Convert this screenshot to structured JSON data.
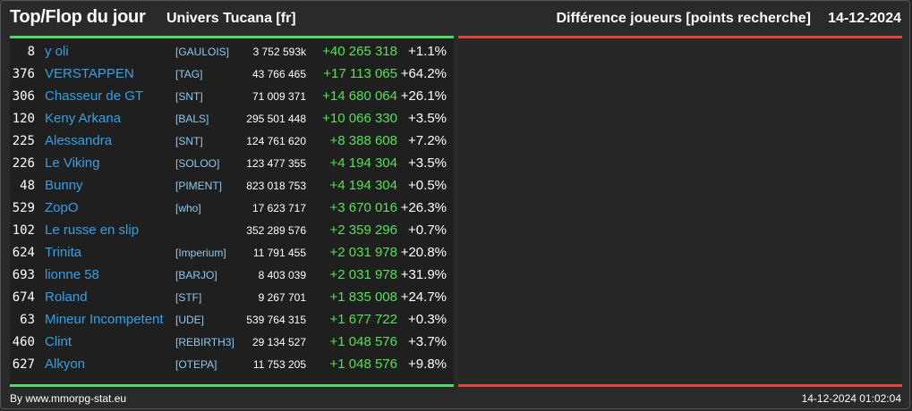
{
  "header": {
    "title": "Top/Flop du jour",
    "universe": "Univers Tucana [fr]",
    "metric": "Différence joueurs [points recherche]",
    "date": "14-12-2024"
  },
  "colors": {
    "top_bar": "#4cd964",
    "flop_bar": "#e2453c",
    "name": "#33a0e6",
    "gain": "#55e055"
  },
  "top_rows": [
    {
      "rank": "8",
      "name": "y oli",
      "ally": "[GAULOIS]",
      "points": "3 752 593k",
      "delta": "+40 265 318",
      "pct": "+1.1%"
    },
    {
      "rank": "376",
      "name": "VERSTAPPEN",
      "ally": "[TAG]",
      "points": "43 766 465",
      "delta": "+17 113 065",
      "pct": "+64.2%"
    },
    {
      "rank": "306",
      "name": "Chasseur de GT",
      "ally": "[SNT]",
      "points": "71 009 371",
      "delta": "+14 680 064",
      "pct": "+26.1%"
    },
    {
      "rank": "120",
      "name": "Keny Arkana",
      "ally": "[BALS]",
      "points": "295 501 448",
      "delta": "+10 066 330",
      "pct": "+3.5%"
    },
    {
      "rank": "225",
      "name": "Alessandra",
      "ally": "[SNT]",
      "points": "124 761 620",
      "delta": "+8 388 608",
      "pct": "+7.2%"
    },
    {
      "rank": "226",
      "name": "Le Viking",
      "ally": "[SOLOO]",
      "points": "123 477 355",
      "delta": "+4 194 304",
      "pct": "+3.5%"
    },
    {
      "rank": "48",
      "name": "Bunny",
      "ally": "[PIMENT]",
      "points": "823 018 753",
      "delta": "+4 194 304",
      "pct": "+0.5%"
    },
    {
      "rank": "529",
      "name": "ZopO",
      "ally": "[who]",
      "points": "17 623 717",
      "delta": "+3 670 016",
      "pct": "+26.3%"
    },
    {
      "rank": "102",
      "name": "Le russe en slip",
      "ally": "",
      "points": "352 289 576",
      "delta": "+2 359 296",
      "pct": "+0.7%"
    },
    {
      "rank": "624",
      "name": "Trinita",
      "ally": "[Imperium]",
      "points": "11 791 455",
      "delta": "+2 031 978",
      "pct": "+20.8%"
    },
    {
      "rank": "693",
      "name": "lionne 58",
      "ally": "[BARJO]",
      "points": "8 403 039",
      "delta": "+2 031 978",
      "pct": "+31.9%"
    },
    {
      "rank": "674",
      "name": "Roland",
      "ally": "[STF]",
      "points": "9 267 701",
      "delta": "+1 835 008",
      "pct": "+24.7%"
    },
    {
      "rank": "63",
      "name": "Mineur Incompetent",
      "ally": "[UDE]",
      "points": "539 764 315",
      "delta": "+1 677 722",
      "pct": "+0.3%"
    },
    {
      "rank": "460",
      "name": "Clint",
      "ally": "[REBIRTH3]",
      "points": "29 134 527",
      "delta": "+1 048 576",
      "pct": "+3.7%"
    },
    {
      "rank": "627",
      "name": "Alkyon",
      "ally": "[OTEPA]",
      "points": "11 753 205",
      "delta": "+1 048 576",
      "pct": "+9.8%"
    }
  ],
  "footer": {
    "source": "By www.mmorpg-stat.eu",
    "timestamp": "14-12-2024 01:02:04"
  }
}
